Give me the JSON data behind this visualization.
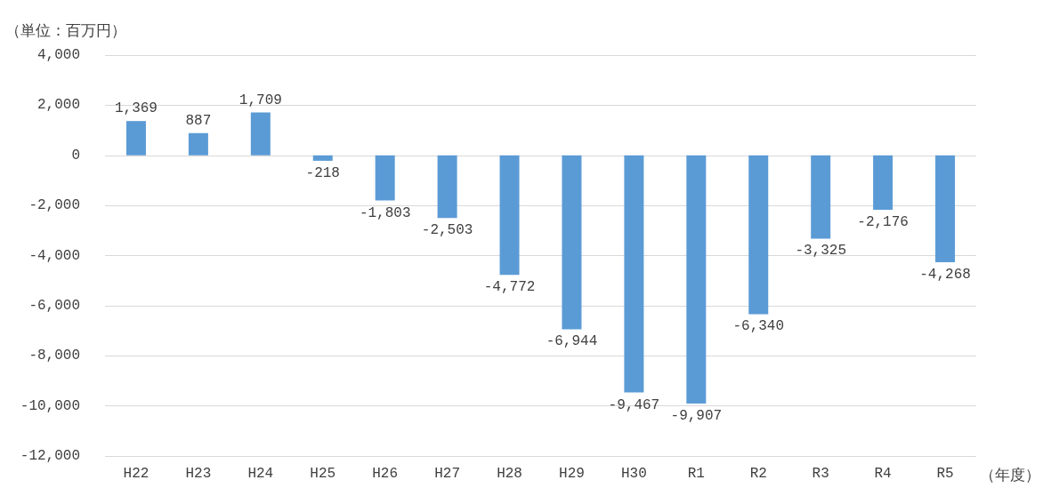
{
  "chart_data": {
    "type": "bar",
    "ylabel": "（単位：百万円）",
    "xlabel": "（年度）",
    "categories": [
      "H22",
      "H23",
      "H24",
      "H25",
      "H26",
      "H27",
      "H28",
      "H29",
      "H30",
      "R1",
      "R2",
      "R3",
      "R4",
      "R5"
    ],
    "values": [
      1369,
      887,
      1709,
      -218,
      -1803,
      -2503,
      -4772,
      -6944,
      -9467,
      -9907,
      -6340,
      -3325,
      -2176,
      -4268
    ],
    "value_labels": [
      "1,369",
      "887",
      "1,709",
      "-218",
      "-1,803",
      "-2,503",
      "-4,772",
      "-6,944",
      "-9,467",
      "-9,907",
      "-6,340",
      "-3,325",
      "-2,176",
      "-4,268"
    ],
    "color": "#5b9bd5",
    "ylim": [
      -12000,
      4000
    ],
    "yticks": [
      {
        "value": -12000,
        "label": "-12,000"
      },
      {
        "value": -10000,
        "label": "-10,000"
      },
      {
        "value": -8000,
        "label": "-8,000"
      },
      {
        "value": -6000,
        "label": "-6,000"
      },
      {
        "value": -4000,
        "label": "-4,000"
      },
      {
        "value": -2000,
        "label": "-2,000"
      },
      0,
      {
        "value": 2000,
        "label": "2,000"
      },
      {
        "value": 4000,
        "label": "4,000"
      }
    ],
    "grid": "y"
  }
}
